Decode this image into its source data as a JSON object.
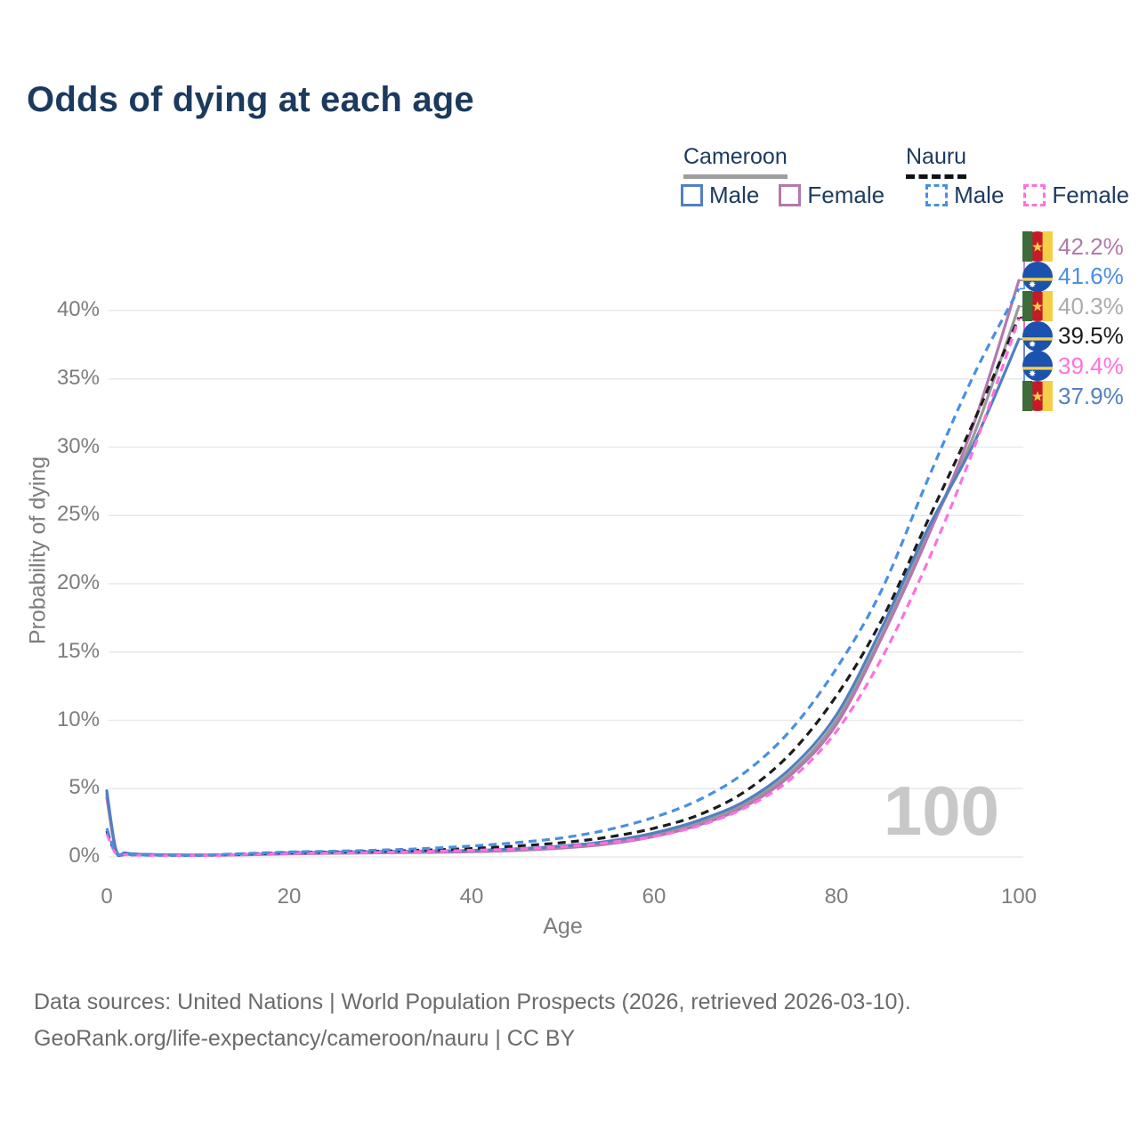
{
  "page": {
    "title": "Odds of dying at each age"
  },
  "legend": {
    "groups": [
      {
        "name": "Cameroon",
        "line_color": "#9e9e9e",
        "line_style": "solid",
        "items": [
          {
            "label": "Male",
            "color": "#5180c0",
            "style": "solid"
          },
          {
            "label": "Female",
            "color": "#b279ae",
            "style": "solid"
          }
        ]
      },
      {
        "name": "Nauru",
        "line_color": "#111111",
        "line_style": "dashed",
        "items": [
          {
            "label": "Male",
            "color": "#4a8fe2",
            "style": "dashed"
          },
          {
            "label": "Female",
            "color": "#ff70e0",
            "style": "dashed"
          }
        ]
      }
    ]
  },
  "watermark": "100",
  "footer": {
    "line1": "Data sources: United Nations | World Population Prospects (2026, retrieved 2026-03-10).",
    "line2": "GeoRank.org/life-expectancy/cameroon/nauru | CC BY"
  },
  "chart_data": {
    "type": "line",
    "title": "Odds of dying at each age",
    "xlabel": "Age",
    "ylabel": "Probability of dying",
    "xlim": [
      0,
      100
    ],
    "ylim": [
      0,
      45
    ],
    "grid": "horizontal",
    "x_ticks": [
      0,
      20,
      40,
      60,
      80,
      100
    ],
    "y_ticks": [
      {
        "value": 0,
        "label": "0%"
      },
      {
        "value": 5,
        "label": "5%"
      },
      {
        "value": 10,
        "label": "10%"
      },
      {
        "value": 15,
        "label": "15%"
      },
      {
        "value": 20,
        "label": "20%"
      },
      {
        "value": 25,
        "label": "25%"
      },
      {
        "value": 30,
        "label": "30%"
      },
      {
        "value": 35,
        "label": "35%"
      },
      {
        "value": 40,
        "label": "40%"
      }
    ],
    "x": [
      0,
      1,
      2,
      3,
      5,
      10,
      15,
      20,
      25,
      30,
      35,
      40,
      45,
      50,
      55,
      60,
      65,
      70,
      75,
      80,
      85,
      90,
      95,
      100
    ],
    "series": [
      {
        "key": "cameroon-total",
        "name": "Cameroon Both sexes",
        "country": "Cameroon",
        "color": "#9a9a9a",
        "dash": false,
        "values": [
          4.6,
          0.5,
          0.28,
          0.2,
          0.16,
          0.13,
          0.16,
          0.26,
          0.31,
          0.35,
          0.38,
          0.43,
          0.54,
          0.72,
          1.05,
          1.6,
          2.5,
          3.9,
          6.2,
          10.0,
          16.3,
          23.6,
          30.8,
          40.3
        ]
      },
      {
        "key": "cameroon-female",
        "name": "Cameroon Female",
        "country": "Cameroon",
        "color": "#b279ae",
        "dash": false,
        "values": [
          4.35,
          0.46,
          0.26,
          0.19,
          0.15,
          0.12,
          0.15,
          0.22,
          0.27,
          0.3,
          0.33,
          0.38,
          0.48,
          0.65,
          0.95,
          1.5,
          2.35,
          3.7,
          6.0,
          9.7,
          16.1,
          23.4,
          31.6,
          42.2
        ]
      },
      {
        "key": "cameroon-male",
        "name": "Cameroon Male",
        "country": "Cameroon",
        "color": "#5180c0",
        "dash": false,
        "values": [
          4.85,
          0.55,
          0.3,
          0.22,
          0.17,
          0.14,
          0.18,
          0.3,
          0.36,
          0.4,
          0.43,
          0.48,
          0.6,
          0.8,
          1.15,
          1.75,
          2.7,
          4.1,
          6.5,
          10.4,
          16.8,
          24.0,
          30.2,
          37.9
        ]
      },
      {
        "key": "nauru-total",
        "name": "Nauru Both sexes",
        "country": "Nauru",
        "color": "#1c1c1c",
        "dash": true,
        "values": [
          1.9,
          0.25,
          0.17,
          0.15,
          0.13,
          0.12,
          0.21,
          0.31,
          0.36,
          0.42,
          0.5,
          0.62,
          0.8,
          1.05,
          1.45,
          2.1,
          3.1,
          4.8,
          7.6,
          11.8,
          17.4,
          24.6,
          31.8,
          39.5
        ]
      },
      {
        "key": "nauru-female",
        "name": "Nauru Female",
        "country": "Nauru",
        "color": "#ff70e0",
        "dash": true,
        "values": [
          1.7,
          0.23,
          0.16,
          0.14,
          0.12,
          0.11,
          0.18,
          0.27,
          0.3,
          0.34,
          0.4,
          0.48,
          0.58,
          0.75,
          1.05,
          1.5,
          2.3,
          3.6,
          5.7,
          9.2,
          14.6,
          21.6,
          29.8,
          39.4
        ]
      },
      {
        "key": "nauru-male",
        "name": "Nauru Male",
        "country": "Nauru",
        "color": "#4a8fe2",
        "dash": true,
        "values": [
          2.1,
          0.28,
          0.19,
          0.16,
          0.14,
          0.13,
          0.24,
          0.36,
          0.42,
          0.5,
          0.62,
          0.8,
          1.05,
          1.4,
          2.0,
          2.9,
          4.2,
          6.2,
          9.3,
          13.8,
          19.6,
          27.6,
          35.2,
          41.6
        ]
      }
    ],
    "end_labels": [
      {
        "series": "cameroon-female",
        "label": "42.2%",
        "value": 42.2,
        "color": "#b07aab",
        "flag": "cameroon"
      },
      {
        "series": "nauru-male",
        "label": "41.6%",
        "value": 41.6,
        "color": "#4a8fe2",
        "flag": "nauru"
      },
      {
        "series": "cameroon-total",
        "label": "40.3%",
        "value": 40.3,
        "color": "#ababab",
        "flag": "cameroon"
      },
      {
        "series": "nauru-total",
        "label": "39.5%",
        "value": 39.5,
        "color": "#1c1c1c",
        "flag": "nauru"
      },
      {
        "series": "nauru-female",
        "label": "39.4%",
        "value": 39.4,
        "color": "#ff70e0",
        "flag": "nauru"
      },
      {
        "series": "cameroon-male",
        "label": "37.9%",
        "value": 37.9,
        "color": "#5180c0",
        "flag": "cameroon"
      }
    ],
    "hover_readout": "100"
  }
}
